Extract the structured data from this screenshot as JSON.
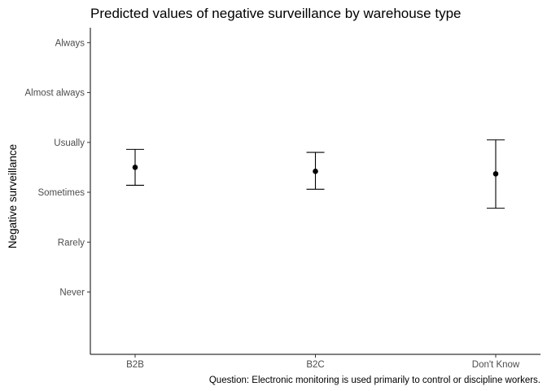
{
  "chart_data": {
    "type": "errorbar",
    "title": "Predicted values of negative surveillance by warehouse type",
    "xlabel": "",
    "ylabel": "Negative surveillance",
    "caption": "Question: Electronic monitoring is used primarily to control or discipline workers.",
    "categories": [
      "B2B",
      "B2C",
      "Don't Know"
    ],
    "y_ticks": [
      {
        "value": 1,
        "label": "Never"
      },
      {
        "value": 2,
        "label": "Rarely"
      },
      {
        "value": 3,
        "label": "Sometimes"
      },
      {
        "value": 4,
        "label": "Usually"
      },
      {
        "value": 5,
        "label": "Almost always"
      },
      {
        "value": 6,
        "label": "Always"
      }
    ],
    "ylim": [
      -0.25,
      6.3
    ],
    "series": [
      {
        "values": [
          3.5,
          3.42,
          3.37
        ],
        "lower": [
          3.14,
          3.06,
          2.68
        ],
        "upper": [
          3.86,
          3.8,
          4.05
        ]
      }
    ],
    "grid": false,
    "colors": {
      "point": "#000000",
      "errorbar": "#000000",
      "axis": "#000000"
    }
  }
}
